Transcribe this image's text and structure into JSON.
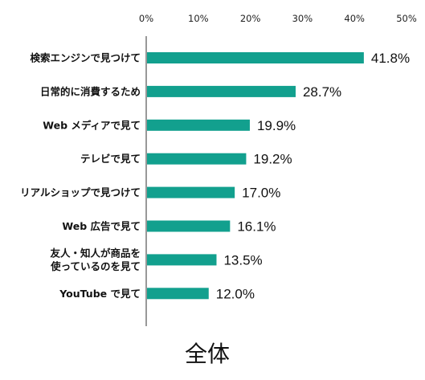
{
  "chart_data": {
    "type": "bar",
    "orientation": "horizontal",
    "subtitle": "全体",
    "categories": [
      [
        "検索エンジンで見つけて"
      ],
      [
        "日常的に消費するため"
      ],
      [
        "Web メディアで見て"
      ],
      [
        "テレビで見て"
      ],
      [
        "リアルショップで見つけて"
      ],
      [
        "Web 広告で見て"
      ],
      [
        "友人・知人が商品を",
        "使っているのを見て"
      ],
      [
        "YouTube で見て"
      ]
    ],
    "values": [
      41.8,
      28.7,
      19.9,
      19.2,
      17.0,
      16.1,
      13.5,
      12.0
    ],
    "value_labels": [
      "41.8%",
      "28.7%",
      "19.9%",
      "19.2%",
      "17.0%",
      "16.1%",
      "13.5%",
      "12.0%"
    ],
    "x_ticks": [
      "0%",
      "10%",
      "20%",
      "30%",
      "40%",
      "50%"
    ],
    "xlim": [
      0,
      50
    ],
    "bar_color": "#12a08e",
    "axis_color": "#333333",
    "grid": false,
    "legend": "none"
  }
}
